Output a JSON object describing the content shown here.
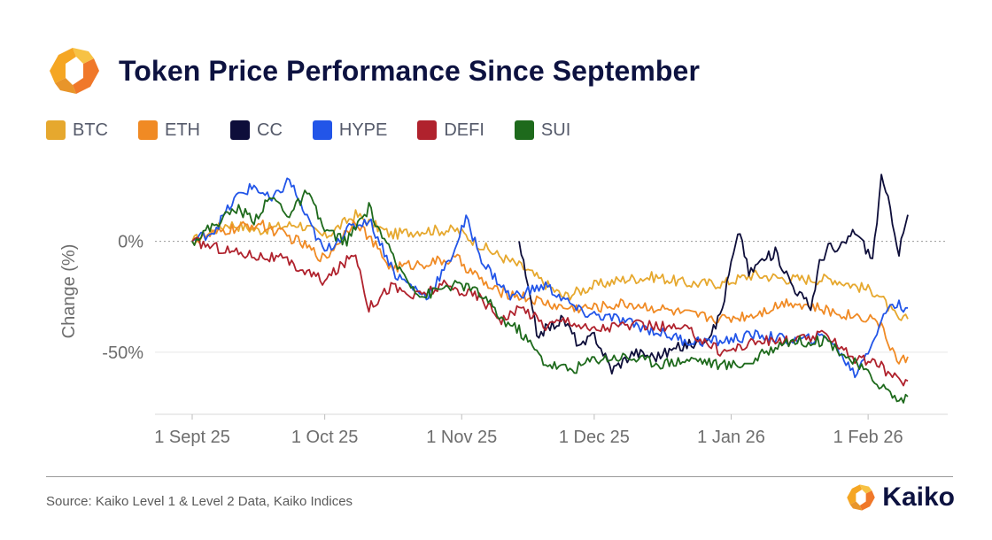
{
  "header": {
    "title": "Token Price Performance Since September",
    "logo_icon": "kaiko-logo-icon"
  },
  "colors": {
    "brand_orange": "#f5a623",
    "brand_navy": "#0d1240",
    "grid": "#e6e6e6",
    "zero_line": "#9a9a9a"
  },
  "chart_data": {
    "type": "line",
    "title": "Token Price Performance Since September",
    "xlabel": "",
    "ylabel": "Change (%)",
    "y_ticks": [
      {
        "value": 0,
        "label": "0%"
      },
      {
        "value": -50,
        "label": "-50%"
      }
    ],
    "ylim": [
      -78,
      33
    ],
    "x_range_days": [
      0,
      164
    ],
    "x_ticks": [
      {
        "day": 0,
        "label": "1 Sept 25"
      },
      {
        "day": 30,
        "label": "1 Oct 25"
      },
      {
        "day": 61,
        "label": "1 Nov 25"
      },
      {
        "day": 91,
        "label": "1 Dec 25"
      },
      {
        "day": 122,
        "label": "1 Jan 26"
      },
      {
        "day": 153,
        "label": "1 Feb 26"
      }
    ],
    "x_unit": "days since 1 Sept 25",
    "legend_position": "top",
    "series": [
      {
        "name": "BTC",
        "color": "#e6a82e",
        "days": [
          0,
          8,
          15,
          24,
          30,
          37,
          45,
          52,
          60,
          68,
          75,
          84,
          91,
          98,
          105,
          112,
          120,
          127,
          135,
          145,
          155,
          160,
          162
        ],
        "values": [
          0,
          8,
          5,
          8,
          2,
          12,
          3,
          5,
          5,
          -5,
          -12,
          -25,
          -20,
          -17,
          -16,
          -19,
          -19,
          -15,
          -17,
          -17,
          -23,
          -36,
          -35
        ]
      },
      {
        "name": "ETH",
        "color": "#f08a24",
        "days": [
          0,
          8,
          15,
          24,
          30,
          37,
          45,
          52,
          60,
          68,
          75,
          84,
          91,
          98,
          105,
          112,
          120,
          127,
          135,
          145,
          155,
          160,
          162
        ],
        "values": [
          0,
          5,
          8,
          0,
          -8,
          10,
          -12,
          -10,
          -8,
          -22,
          -25,
          -30,
          -30,
          -28,
          -30,
          -33,
          -35,
          -33,
          -27,
          -32,
          -35,
          -55,
          -52
        ]
      },
      {
        "name": "CC",
        "color": "#0e0e3a",
        "days": [
          74,
          78,
          84,
          88,
          91,
          95,
          100,
          105,
          110,
          115,
          118,
          120,
          122,
          124,
          126,
          128,
          132,
          136,
          140,
          142,
          144,
          146,
          150,
          154,
          156,
          158,
          160,
          162
        ],
        "values": [
          0,
          -42,
          -35,
          -48,
          -42,
          -58,
          -50,
          -52,
          -48,
          -45,
          -40,
          -30,
          -10,
          5,
          -15,
          -10,
          -5,
          -20,
          -30,
          -10,
          -2,
          -5,
          5,
          -8,
          28,
          15,
          -5,
          12
        ]
      },
      {
        "name": "HYPE",
        "color": "#2255e8",
        "days": [
          0,
          5,
          10,
          14,
          18,
          22,
          26,
          30,
          35,
          40,
          46,
          53,
          58,
          62,
          66,
          72,
          80,
          88,
          96,
          104,
          112,
          120,
          128,
          136,
          144,
          150,
          154,
          158,
          162
        ],
        "values": [
          0,
          5,
          20,
          25,
          18,
          28,
          10,
          -5,
          5,
          10,
          -15,
          -25,
          -10,
          10,
          -10,
          -25,
          -20,
          -32,
          -35,
          -40,
          -45,
          -45,
          -42,
          -45,
          -43,
          -60,
          -45,
          -28,
          -30
        ]
      },
      {
        "name": "DEFI",
        "color": "#b0222d",
        "days": [
          0,
          10,
          20,
          30,
          37,
          40,
          45,
          50,
          57,
          65,
          70,
          75,
          80,
          85,
          90,
          96,
          104,
          112,
          120,
          128,
          136,
          144,
          150,
          155,
          160,
          162
        ],
        "values": [
          0,
          -5,
          -8,
          -18,
          -5,
          -30,
          -20,
          -25,
          -20,
          -25,
          -35,
          -30,
          -38,
          -35,
          -40,
          -38,
          -38,
          -40,
          -50,
          -45,
          -45,
          -42,
          -53,
          -55,
          -63,
          -63
        ]
      },
      {
        "name": "SUI",
        "color": "#1e6a1c",
        "days": [
          0,
          10,
          14,
          18,
          22,
          26,
          30,
          35,
          40,
          46,
          52,
          58,
          62,
          66,
          70,
          74,
          80,
          86,
          91,
          98,
          106,
          114,
          120,
          126,
          134,
          144,
          150,
          156,
          160,
          162
        ],
        "values": [
          0,
          15,
          10,
          20,
          12,
          22,
          5,
          0,
          15,
          -10,
          -25,
          -20,
          -20,
          -25,
          -35,
          -40,
          -55,
          -58,
          -53,
          -52,
          -55,
          -53,
          -56,
          -55,
          -45,
          -45,
          -55,
          -65,
          -72,
          -70
        ]
      }
    ]
  },
  "footer": {
    "source": "Source: Kaiko Level 1 & Level 2 Data, Kaiko Indices",
    "brand_name": "Kaiko",
    "brand_icon": "kaiko-logo-icon"
  }
}
